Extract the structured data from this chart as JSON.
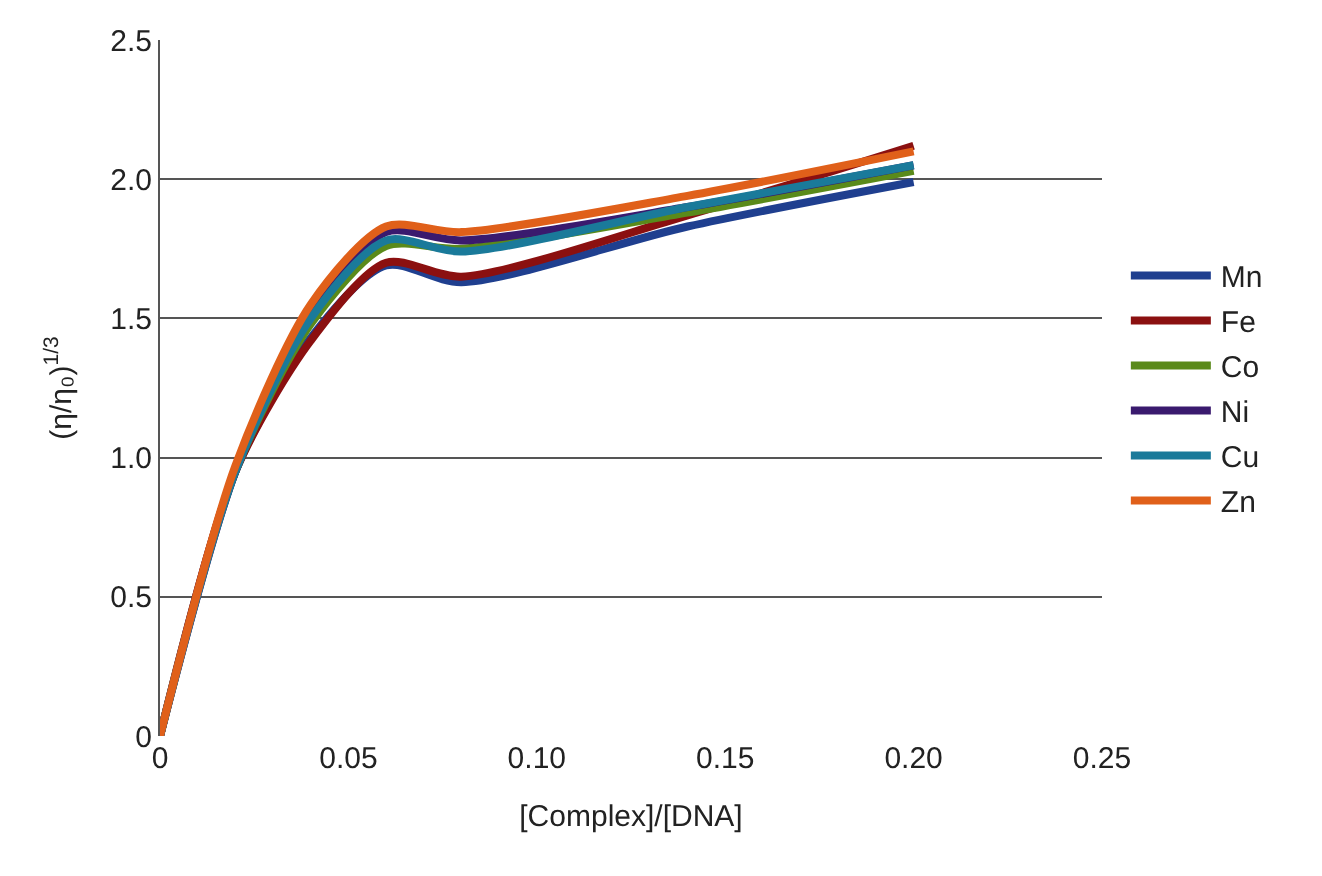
{
  "chart_data": {
    "type": "line",
    "xlabel": "[Complex]/[DNA]",
    "ylabel": "(η/η₀)$^{1/3}$",
    "x": [
      0,
      0.02,
      0.04,
      0.06,
      0.08,
      0.14,
      0.2
    ],
    "series": [
      {
        "name": "Mn",
        "color": "#1f3f8f",
        "values": [
          0,
          0.95,
          1.43,
          1.69,
          1.63,
          1.83,
          1.99
        ]
      },
      {
        "name": "Fe",
        "color": "#8b1010",
        "values": [
          0,
          0.95,
          1.42,
          1.7,
          1.65,
          1.87,
          2.12
        ]
      },
      {
        "name": "Co",
        "color": "#5a8a1a",
        "values": [
          0,
          0.95,
          1.48,
          1.76,
          1.75,
          1.88,
          2.03
        ]
      },
      {
        "name": "Ni",
        "color": "#3a1a6e",
        "values": [
          0,
          0.95,
          1.52,
          1.81,
          1.78,
          1.9,
          2.05
        ]
      },
      {
        "name": "Cu",
        "color": "#1a7a9a",
        "values": [
          0,
          0.95,
          1.5,
          1.78,
          1.74,
          1.9,
          2.05
        ]
      },
      {
        "name": "Zn",
        "color": "#e0601a",
        "values": [
          0,
          0.97,
          1.55,
          1.83,
          1.81,
          1.94,
          2.1
        ]
      }
    ],
    "xlim": [
      0,
      0.25
    ],
    "ylim": [
      0,
      2.5
    ],
    "xticks": [
      0,
      0.05,
      {
        "value": 0.1,
        "label": "0.10"
      },
      0.15,
      {
        "value": 0.2,
        "label": "0.20"
      },
      0.25
    ],
    "yticks": [
      0,
      0.5,
      {
        "value": 1,
        "label": "1.0"
      },
      1.5,
      {
        "value": 2,
        "label": "2.0"
      },
      2.5
    ],
    "grid": "y",
    "legend": "right",
    "marker": "none",
    "line_style": "solid"
  }
}
